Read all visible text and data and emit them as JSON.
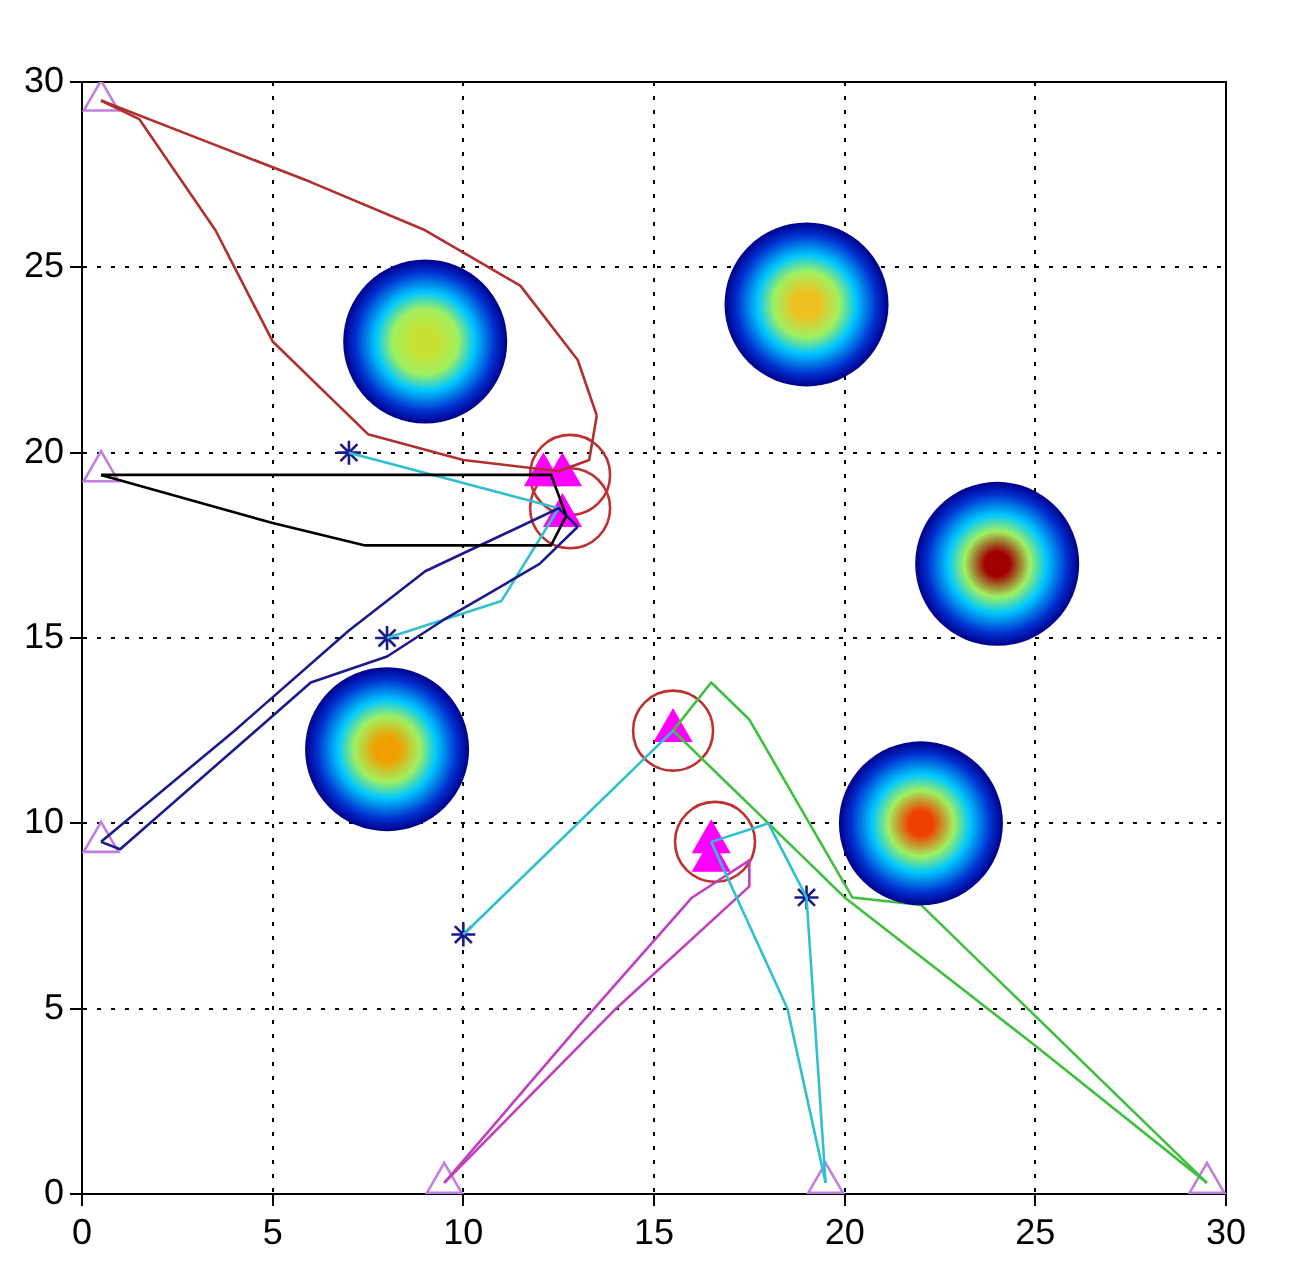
{
  "chart_data": {
    "type": "line",
    "xlim": [
      0,
      30
    ],
    "ylim": [
      0,
      30
    ],
    "xticks": [
      0,
      5,
      10,
      15,
      20,
      25,
      30
    ],
    "yticks": [
      0,
      5,
      10,
      15,
      20,
      25,
      30
    ],
    "grid": true,
    "series": [
      {
        "type": "bubble",
        "colors": [
          "#c8e030",
          "#f0c020",
          "#a00000",
          "#f0a000",
          "#f04000"
        ],
        "x": [
          9,
          19,
          24,
          8,
          22
        ],
        "values": [
          23,
          24,
          17,
          12,
          10
        ],
        "sizes": [
          1,
          1,
          1,
          1,
          1
        ]
      },
      {
        "type": "line",
        "color": "#b03030",
        "x": [
          0.5,
          3,
          6,
          9,
          11.5,
          13,
          13.5
        ],
        "values": [
          29.5,
          28.5,
          27.3,
          26,
          24.5,
          22.5,
          21
        ]
      },
      {
        "type": "line",
        "color": "#b03030",
        "x": [
          13.5,
          13.3,
          12.5,
          10,
          7.5,
          5,
          3.5,
          1.5,
          0.5
        ],
        "values": [
          21,
          19.8,
          19.5,
          19.8,
          20.5,
          23,
          26,
          29,
          29.5
        ]
      },
      {
        "type": "line",
        "color": "#000000",
        "x": [
          0.5,
          12.3,
          12.7
        ],
        "values": [
          19.4,
          19.4,
          18.3
        ]
      },
      {
        "type": "line",
        "color": "#000000",
        "x": [
          12.7,
          12.3,
          7.4,
          5,
          0.5
        ],
        "values": [
          18.3,
          17.5,
          17.5,
          18.1,
          19.4
        ]
      },
      {
        "type": "line",
        "color": "#1a1a8c",
        "x": [
          0.5,
          4,
          7,
          9,
          12.5,
          13
        ],
        "values": [
          9.5,
          12.5,
          15.2,
          16.8,
          18.5,
          18
        ]
      },
      {
        "type": "line",
        "color": "#1a1a8c",
        "x": [
          13,
          12,
          9.5,
          8,
          6,
          4,
          1,
          0.5
        ],
        "values": [
          18,
          17,
          15.5,
          14.5,
          13.8,
          12,
          9.3,
          9.5
        ]
      },
      {
        "type": "line",
        "color": "#30c0d0",
        "x": [
          7,
          12.5
        ],
        "values": [
          20,
          18.5
        ]
      },
      {
        "type": "line",
        "color": "#30c0d0",
        "x": [
          12.5,
          11,
          8
        ],
        "values": [
          18.5,
          16,
          15
        ]
      },
      {
        "type": "line",
        "color": "#30c0d0",
        "x": [
          10,
          15.5
        ],
        "values": [
          7,
          12.5
        ]
      },
      {
        "type": "line",
        "color": "#30c0d0",
        "x": [
          16.5,
          18.5,
          19.5
        ],
        "values": [
          9.5,
          5,
          0.3
        ]
      },
      {
        "type": "line",
        "color": "#30c0d0",
        "x": [
          19.5,
          19,
          18,
          16.5
        ],
        "values": [
          0.3,
          8,
          10,
          9.5
        ]
      },
      {
        "type": "line",
        "color": "#40c040",
        "x": [
          15.5,
          16.5,
          17.5,
          20.2,
          22,
          29.5
        ],
        "values": [
          12.5,
          13.8,
          12.8,
          8,
          7.8,
          0.3
        ]
      },
      {
        "type": "line",
        "color": "#40c040",
        "x": [
          29.5,
          25,
          20,
          19,
          17,
          15.5
        ],
        "values": [
          0.3,
          4,
          8,
          9,
          11,
          12.5
        ]
      },
      {
        "type": "line",
        "color": "#c040c0",
        "x": [
          9.5,
          13,
          16,
          17.5
        ],
        "values": [
          0.3,
          4.5,
          8,
          9
        ]
      },
      {
        "type": "line",
        "color": "#c040c0",
        "x": [
          17.5,
          17.5,
          14,
          9.5
        ],
        "values": [
          9,
          8.3,
          5,
          0.3
        ]
      },
      {
        "type": "scatter",
        "marker": "triangle",
        "color": "#c080e0",
        "x": [
          0.5,
          0.5,
          0.5,
          9.5,
          19.5,
          29.5
        ],
        "values": [
          29.5,
          19.5,
          9.5,
          0.3,
          0.3,
          0.3
        ]
      },
      {
        "type": "scatter",
        "marker": "triangle",
        "color": "#ff00ff",
        "x": [
          12.1,
          12.6,
          12.6,
          15.5,
          16.5,
          16.5
        ],
        "values": [
          19.4,
          19.4,
          18.3,
          12.5,
          9.5,
          9.0
        ]
      },
      {
        "type": "scatter",
        "marker": "cross",
        "color": "#1a1a8c",
        "x": [
          7,
          8,
          10,
          19
        ],
        "values": [
          20,
          15,
          7,
          8
        ]
      },
      {
        "type": "scatter",
        "marker": "circle",
        "color": "#c03030",
        "x": [
          12.8,
          12.8,
          15.5,
          16.6
        ],
        "values": [
          19.4,
          18.5,
          12.5,
          9.5
        ]
      }
    ]
  }
}
